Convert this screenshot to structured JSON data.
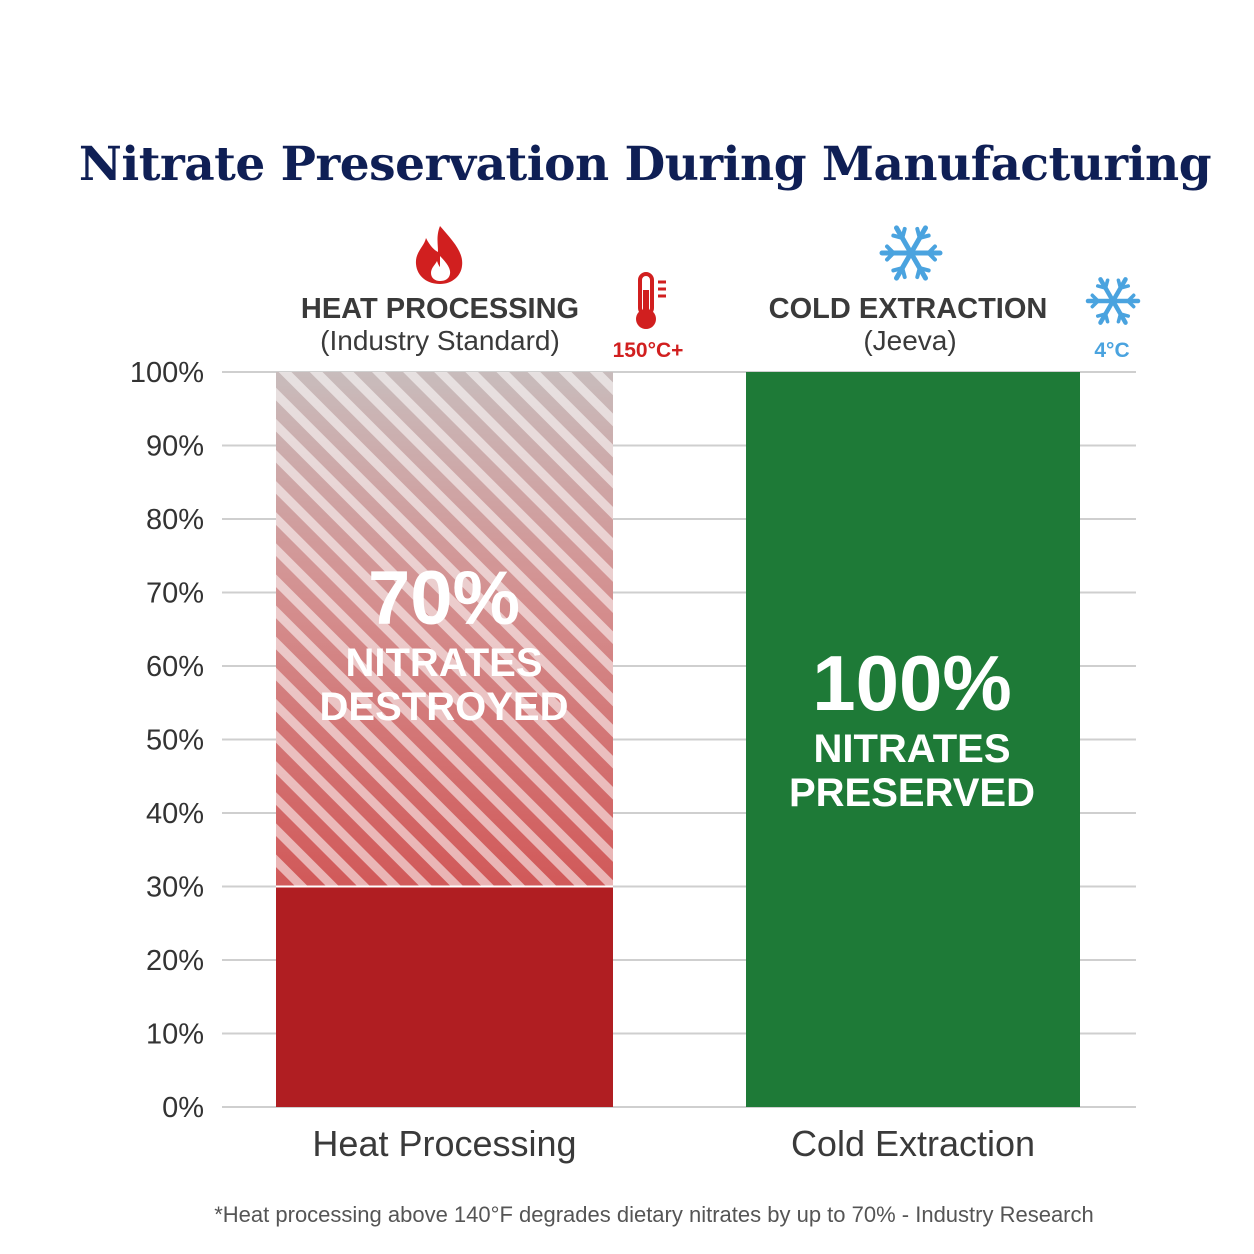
{
  "title": "Nitrate Preservation During Manufacturing",
  "footnote": "*Heat processing above 140°F degrades dietary nitrates by up to 70% - Industry Research",
  "colors": {
    "heat_red": "#b01e22",
    "heat_hatch_base": "#d9a3a3",
    "cold_green": "#1e7a37",
    "title_navy": "#0f1f55",
    "ice_blue": "#4aa3df"
  },
  "headers": {
    "heat": {
      "title": "HEAT PROCESSING",
      "subtitle": "(Industry Standard)",
      "temp": "150°C+",
      "icons": [
        "flame-icon",
        "thermometer-icon"
      ]
    },
    "cold": {
      "title": "COLD EXTRACTION",
      "subtitle": "(Jeeva)",
      "temp": "4°C",
      "icons": [
        "snowflake-icon",
        "snowflake-icon"
      ]
    }
  },
  "bar_labels": {
    "heat": {
      "value": "70%",
      "line1": "NITRATES",
      "line2": "DESTROYED"
    },
    "cold": {
      "value": "100%",
      "line1": "NITRATES",
      "line2": "PRESERVED"
    }
  },
  "chart_data": {
    "type": "bar",
    "stacked": true,
    "categories": [
      "Heat Processing",
      "Cold Extraction"
    ],
    "series": [
      {
        "name": "",
        "values": [
          30,
          100
        ]
      },
      {
        "name": "",
        "values": [
          70,
          0
        ]
      }
    ],
    "ylim": [
      0,
      100
    ],
    "yticks": [
      "0%",
      "10%",
      "20%",
      "30%",
      "40%",
      "50%",
      "60%",
      "70%",
      "80%",
      "90%",
      "100%"
    ],
    "grid": true
  }
}
